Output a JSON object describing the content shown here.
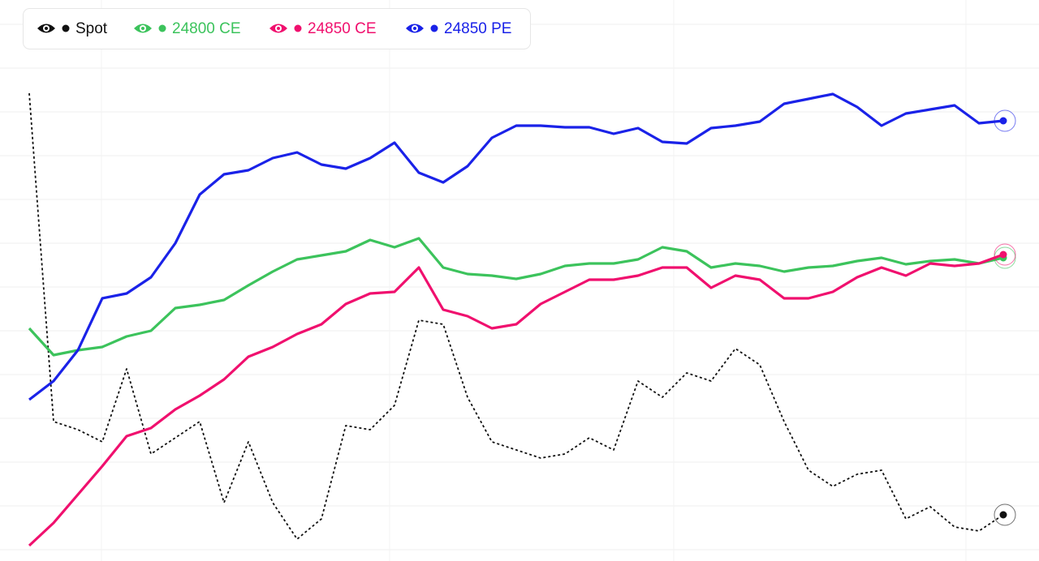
{
  "chart_data": {
    "type": "line",
    "grid": true,
    "ylim": [
      0,
      692
    ],
    "series": [
      {
        "name": "Spot",
        "color": "#111111",
        "dashed": true,
        "values": [
          577,
          172,
          162,
          147,
          237,
          132,
          152,
          172,
          72,
          147,
          72,
          27,
          52,
          167,
          162,
          192,
          297,
          292,
          202,
          147,
          137,
          127,
          132,
          152,
          137,
          222,
          202,
          232,
          222,
          262,
          242,
          172,
          112,
          92,
          107,
          112,
          52,
          67,
          42,
          37,
          57
        ]
      },
      {
        "name": "24800 CE",
        "color": "#3cc35c",
        "values": [
          287,
          254,
          260,
          264,
          277,
          284,
          312,
          316,
          322,
          340,
          357,
          372,
          377,
          382,
          396,
          387,
          398,
          362,
          354,
          352,
          348,
          354,
          364,
          367,
          367,
          372,
          387,
          382,
          362,
          367,
          364,
          357,
          362,
          364,
          370,
          374,
          366,
          370,
          372,
          367,
          374
        ]
      },
      {
        "name": "24850 CE",
        "color": "#f0106e",
        "values": [
          19,
          47,
          82,
          117,
          154,
          164,
          187,
          204,
          224,
          252,
          264,
          280,
          292,
          317,
          330,
          332,
          362,
          310,
          302,
          287,
          292,
          317,
          332,
          347,
          347,
          352,
          362,
          362,
          337,
          352,
          347,
          324,
          324,
          332,
          350,
          362,
          352,
          367,
          364,
          367,
          378
        ]
      },
      {
        "name": "24850 PE",
        "color": "#1a22e8",
        "values": [
          199,
          222,
          260,
          324,
          330,
          350,
          392,
          452,
          477,
          482,
          497,
          504,
          489,
          484,
          497,
          516,
          479,
          467,
          487,
          522,
          537,
          537,
          535,
          535,
          527,
          534,
          517,
          515,
          534,
          537,
          542,
          564,
          570,
          576,
          560,
          537,
          552,
          557,
          562,
          540,
          543
        ]
      }
    ]
  }
}
